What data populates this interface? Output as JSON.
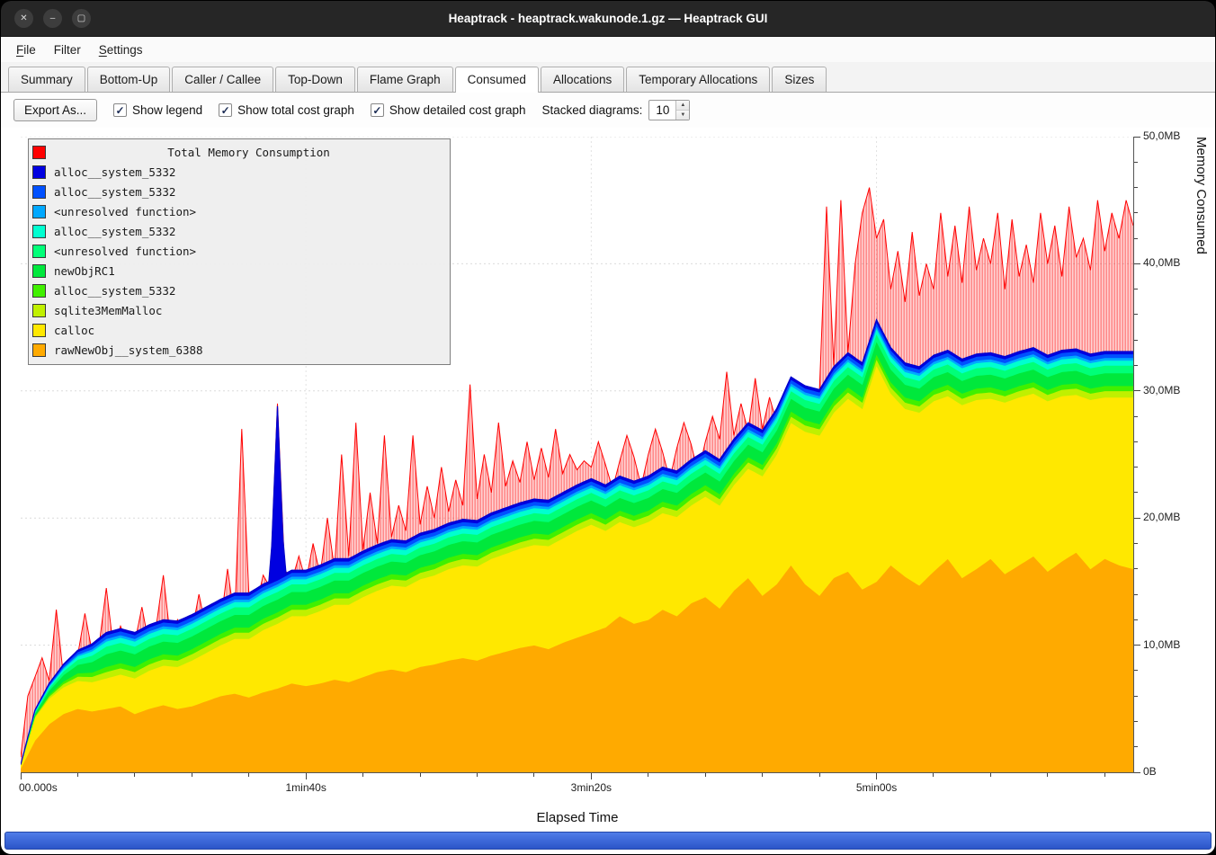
{
  "window": {
    "title": "Heaptrack - heaptrack.wakunode.1.gz — Heaptrack GUI",
    "controls": [
      {
        "name": "close",
        "glyph": "✕"
      },
      {
        "name": "minimize",
        "glyph": "–"
      },
      {
        "name": "maximize",
        "glyph": "▢"
      }
    ]
  },
  "icons": {
    "checkmark": "✓",
    "spin_up": "▲",
    "spin_down": "▼"
  },
  "menu": {
    "items": [
      {
        "label": "File",
        "underline_first": true
      },
      {
        "label": "Filter",
        "underline_first": false
      },
      {
        "label": "Settings",
        "underline_first": true
      }
    ]
  },
  "tabs": [
    {
      "label": "Summary",
      "active": false
    },
    {
      "label": "Bottom-Up",
      "active": false
    },
    {
      "label": "Caller / Callee",
      "active": false
    },
    {
      "label": "Top-Down",
      "active": false
    },
    {
      "label": "Flame Graph",
      "active": false
    },
    {
      "label": "Consumed",
      "active": true
    },
    {
      "label": "Allocations",
      "active": false
    },
    {
      "label": "Temporary Allocations",
      "active": false
    },
    {
      "label": "Sizes",
      "active": false
    }
  ],
  "toolbar": {
    "export_label": "Export As...",
    "checkboxes": [
      {
        "label": "Show legend",
        "checked": true
      },
      {
        "label": "Show total cost graph",
        "checked": true
      },
      {
        "label": "Show detailed cost graph",
        "checked": true
      }
    ],
    "stacked_label": "Stacked diagrams:",
    "stacked_value": "10"
  },
  "chart_data": {
    "type": "area",
    "legend_title": "Total Memory Consumption",
    "legend_position": "top-left",
    "xlabel": "Elapsed Time",
    "ylabel": "Memory Consumed",
    "x_max_seconds": 390,
    "y_max_mb": 50,
    "x_ticks": [
      {
        "t": 0,
        "label": "00.000s"
      },
      {
        "t": 100,
        "label": "1min40s"
      },
      {
        "t": 200,
        "label": "3min20s"
      },
      {
        "t": 300,
        "label": "5min00s"
      }
    ],
    "y_ticks": [
      {
        "mb": 0,
        "label": "0B"
      },
      {
        "mb": 10,
        "label": "10,0MB"
      },
      {
        "mb": 20,
        "label": "20,0MB"
      },
      {
        "mb": 30,
        "label": "30,0MB"
      },
      {
        "mb": 40,
        "label": "40,0MB"
      },
      {
        "mb": 50,
        "label": "50,0MB"
      }
    ],
    "x_minor_tick_seconds": 20,
    "y_minor_tick_mb": 2,
    "grid": true,
    "total_series": {
      "name": "Total Memory Consumption",
      "color": "#ff0000",
      "unit": "MB",
      "t_step": 2.5,
      "values": [
        1.2,
        6.0,
        7.5,
        9.0,
        7.2,
        12.8,
        7.5,
        8.5,
        9.2,
        12.5,
        9.5,
        10.0,
        14.5,
        9.8,
        11.5,
        10.0,
        10.2,
        13.0,
        10.0,
        11.5,
        15.5,
        10.5,
        12.0,
        10.8,
        11.0,
        14.0,
        11.2,
        12.5,
        11.5,
        16.0,
        12.0,
        27.0,
        14.0,
        13.0,
        15.5,
        14.5,
        29.0,
        16.0,
        15.0,
        17.0,
        15.0,
        18.0,
        15.5,
        20.0,
        16.0,
        25.0,
        17.0,
        27.5,
        17.5,
        22.0,
        18.0,
        26.5,
        18.5,
        21.0,
        19.0,
        26.5,
        19.5,
        22.5,
        20.0,
        24.0,
        20.5,
        23.0,
        21.0,
        30.5,
        21.5,
        25.0,
        22.0,
        27.5,
        22.5,
        24.5,
        22.8,
        26.0,
        23.0,
        25.5,
        23.2,
        27.0,
        23.5,
        25.0,
        23.8,
        24.5,
        24.0,
        26.0,
        24.2,
        22.3,
        24.5,
        26.5,
        24.8,
        22.5,
        25.0,
        27.0,
        25.2,
        23.0,
        25.5,
        27.5,
        25.8,
        23.5,
        26.0,
        28.0,
        26.2,
        31.5,
        26.5,
        29.0,
        26.8,
        31.0,
        27.0,
        29.5,
        27.5,
        28.5,
        28.0,
        30.0,
        28.5,
        29.0,
        30.0,
        44.5,
        32.0,
        45.0,
        33.0,
        40.0,
        44.0,
        46.0,
        42.0,
        43.5,
        38.0,
        41.0,
        37.0,
        42.5,
        37.5,
        40.0,
        38.0,
        44.0,
        39.0,
        43.0,
        38.5,
        44.5,
        39.5,
        42.0,
        40.0,
        44.0,
        38.0,
        43.5,
        39.0,
        41.5,
        38.5,
        44.0,
        40.0,
        43.0,
        39.0,
        44.5,
        40.5,
        42.0,
        39.5,
        45.0,
        41.0,
        44.0,
        42.0,
        45.0,
        43.0
      ]
    },
    "stacked_series": [
      {
        "name": "rawNewObj__system_6388",
        "color": "#ffaa00",
        "unit": "MB",
        "t_step": 5,
        "values": [
          0.3,
          2.5,
          3.8,
          4.6,
          5.0,
          4.8,
          5.0,
          5.2,
          4.6,
          5.0,
          5.3,
          5.0,
          5.2,
          5.6,
          6.0,
          6.2,
          5.9,
          6.3,
          6.6,
          7.0,
          6.8,
          7.0,
          7.3,
          7.1,
          7.5,
          7.9,
          8.1,
          7.9,
          8.3,
          8.5,
          8.8,
          9.0,
          8.8,
          9.2,
          9.5,
          9.8,
          10.0,
          9.7,
          10.2,
          10.6,
          11.0,
          11.4,
          12.3,
          11.7,
          12.0,
          12.8,
          12.3,
          13.3,
          13.8,
          12.9,
          14.3,
          15.3,
          13.9,
          14.8,
          16.3,
          14.8,
          13.9,
          15.3,
          15.8,
          14.4,
          15.0,
          16.3,
          15.4,
          14.7,
          15.8,
          16.8,
          15.3,
          16.0,
          16.8,
          15.6,
          16.3,
          17.0,
          15.8,
          16.6,
          17.3,
          16.0,
          16.8,
          16.3,
          16.0
        ]
      },
      {
        "name": "calloc",
        "color": "#ffe800",
        "unit": "MB",
        "t_step": 5,
        "values": [
          0.3,
          1.8,
          2.0,
          2.1,
          2.2,
          2.3,
          2.4,
          2.5,
          2.8,
          3.0,
          3.1,
          3.3,
          3.6,
          3.8,
          4.0,
          4.3,
          4.6,
          4.9,
          5.1,
          5.3,
          5.5,
          5.7,
          5.9,
          6.1,
          6.3,
          6.4,
          6.6,
          6.7,
          6.9,
          7.0,
          7.2,
          7.3,
          7.4,
          7.6,
          7.7,
          7.8,
          7.9,
          8.1,
          8.2,
          8.4,
          8.5,
          7.6,
          7.4,
          7.6,
          7.7,
          7.6,
          7.8,
          7.7,
          7.9,
          8.1,
          8.3,
          8.6,
          9.4,
          10.2,
          11.2,
          12.0,
          12.6,
          13.0,
          13.6,
          14.2,
          17.0,
          13.5,
          13.2,
          13.6,
          13.4,
          12.8,
          13.6,
          13.3,
          12.6,
          13.5,
          13.2,
          12.8,
          13.4,
          13.0,
          12.4,
          13.3,
          12.7,
          13.2,
          13.5
        ]
      },
      {
        "name": "sqlite3MemMalloc",
        "color": "#c0f000",
        "unit": "MB",
        "base_mb": 0.5,
        "ramp_seconds": 30
      },
      {
        "name": "alloc__system_5332",
        "color": "#40f000",
        "unit": "MB",
        "base_mb": 0.4,
        "ramp_seconds": 30
      },
      {
        "name": "newObjRC1",
        "color": "#00e83c",
        "unit": "MB",
        "base_mb": 1.0,
        "ramp_seconds": 30
      },
      {
        "name": "<unresolved function>",
        "color": "#00ff78",
        "unit": "MB",
        "base_mb": 0.6,
        "ramp_seconds": 30
      },
      {
        "name": "alloc__system_5332",
        "color": "#00ffd0",
        "unit": "MB",
        "base_mb": 0.4,
        "ramp_seconds": 30
      },
      {
        "name": "<unresolved function>",
        "color": "#00a8ff",
        "unit": "MB",
        "base_mb": 0.2,
        "ramp_seconds": 30
      },
      {
        "name": "alloc__system_5332",
        "color": "#0050ff",
        "unit": "MB",
        "base_mb": 0.3,
        "ramp_seconds": 30
      },
      {
        "name": "alloc__system_5332",
        "color": "#0000e0",
        "unit": "MB",
        "base_mb": 0.2,
        "ramp_seconds": 30,
        "spikes": [
          {
            "t": 90,
            "extra_mb": 13.5,
            "half_width_s": 2.5
          }
        ]
      }
    ]
  }
}
